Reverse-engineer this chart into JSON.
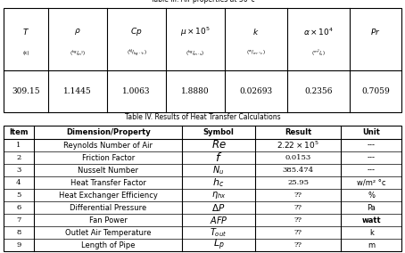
{
  "table3_title": "Table III. Air properties at 36°c",
  "table3_values": [
    "309.15",
    "1.1445",
    "1.0063",
    "1.8880",
    "0.02693",
    "0.2356",
    "0.7059"
  ],
  "table4_title": "Table IV. Results of Heat Transfer Calculations",
  "table4_headers": [
    "Item",
    "Dimension/Property",
    "Symbol",
    "Result",
    "Unit"
  ],
  "table4_rows": [
    [
      "1",
      "Reynolds Number of Air",
      "Re_italic",
      "2.22 × 10⁵",
      "---"
    ],
    [
      "2",
      "Friction Factor",
      "f_italic",
      "0.0153",
      "---"
    ],
    [
      "3",
      "Nusselt Number",
      "Nu_italic",
      "385.474",
      "---"
    ],
    [
      "4",
      "Heat Transfer Factor",
      "hc_italic",
      "25.95",
      "w/m² °c"
    ],
    [
      "5",
      "Heat Exchanger Efficiency",
      "eta_hx_italic",
      "??",
      "%"
    ],
    [
      "6",
      "Differential Pressure",
      "DeltaP_italic",
      "??",
      "Pa"
    ],
    [
      "7",
      "Fan Power",
      "AFP_italic",
      "??",
      "watt"
    ],
    [
      "8",
      "Outlet Air Temperature",
      "Tout_italic",
      "??",
      "k"
    ],
    [
      "9",
      "Length of Pipe",
      "Lp_italic",
      "??",
      "m"
    ]
  ],
  "t3_col_widths": [
    50,
    66,
    66,
    66,
    70,
    70,
    58
  ],
  "t4_col_widths": [
    30,
    148,
    72,
    86,
    60
  ],
  "bg_color": "#ffffff"
}
